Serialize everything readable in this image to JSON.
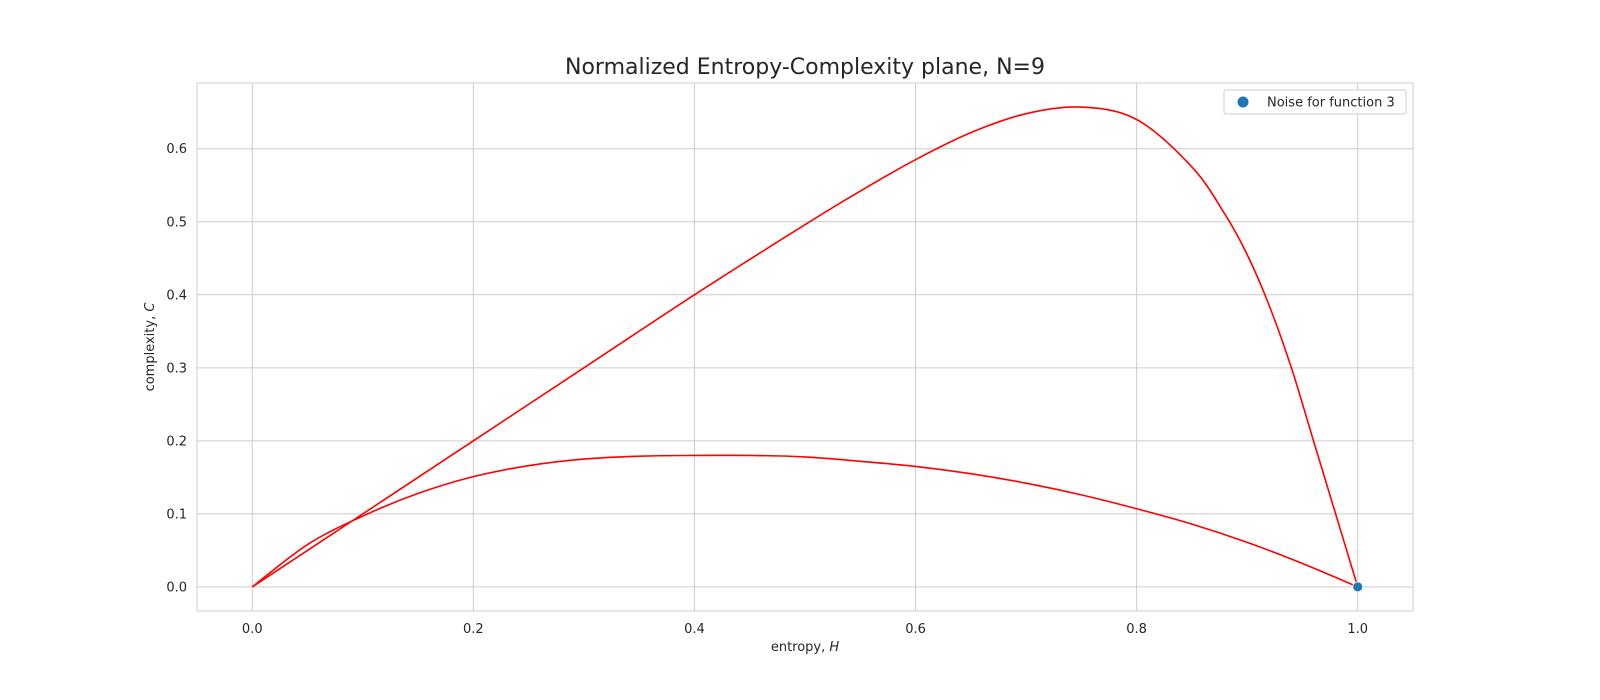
{
  "chart_data": {
    "type": "line",
    "title": "Normalized Entropy-Complexity plane, N=9",
    "xlabel": "entropy, ",
    "xlabel_var": "H",
    "ylabel": "complexity, ",
    "ylabel_var": "C",
    "xlim": [
      -0.05,
      1.05
    ],
    "ylim": [
      -0.033,
      0.69
    ],
    "xticks": [
      0.0,
      0.2,
      0.4,
      0.6,
      0.8,
      1.0
    ],
    "xtick_labels": [
      "0.0",
      "0.2",
      "0.4",
      "0.6",
      "0.8",
      "1.0"
    ],
    "yticks": [
      0.0,
      0.1,
      0.2,
      0.3,
      0.4,
      0.5,
      0.6
    ],
    "ytick_labels": [
      "0.0",
      "0.1",
      "0.2",
      "0.3",
      "0.4",
      "0.5",
      "0.6"
    ],
    "grid": true,
    "legend_position": "top-right",
    "series": [
      {
        "kind": "line",
        "color": "#ff0000",
        "x": [
          0.0,
          0.05,
          0.1,
          0.15,
          0.2,
          0.25,
          0.3,
          0.35,
          0.4,
          0.45,
          0.5,
          0.55,
          0.6,
          0.65,
          0.7,
          0.75,
          0.8,
          0.85,
          0.9,
          0.95,
          1.0
        ],
        "y": [
          0.0,
          0.058,
          0.097,
          0.128,
          0.151,
          0.166,
          0.175,
          0.179,
          0.18,
          0.18,
          0.178,
          0.172,
          0.165,
          0.155,
          0.142,
          0.126,
          0.107,
          0.086,
          0.061,
          0.032,
          0.0
        ]
      },
      {
        "kind": "line",
        "color": "#ff0000",
        "x": [
          0.0,
          0.1,
          0.2,
          0.3,
          0.4,
          0.5,
          0.55,
          0.6,
          0.65,
          0.7,
          0.75,
          0.8,
          0.85,
          0.88,
          0.9,
          0.92,
          0.94,
          0.96,
          0.98,
          1.0
        ],
        "y": [
          0.0,
          0.1,
          0.2,
          0.3,
          0.4,
          0.496,
          0.542,
          0.585,
          0.622,
          0.648,
          0.657,
          0.64,
          0.575,
          0.51,
          0.455,
          0.385,
          0.3,
          0.2,
          0.1,
          0.0
        ]
      },
      {
        "kind": "scatter",
        "name": "Noise for function 3",
        "color": "#1f77b4",
        "x": [
          1.0
        ],
        "y": [
          0.0
        ]
      }
    ]
  }
}
